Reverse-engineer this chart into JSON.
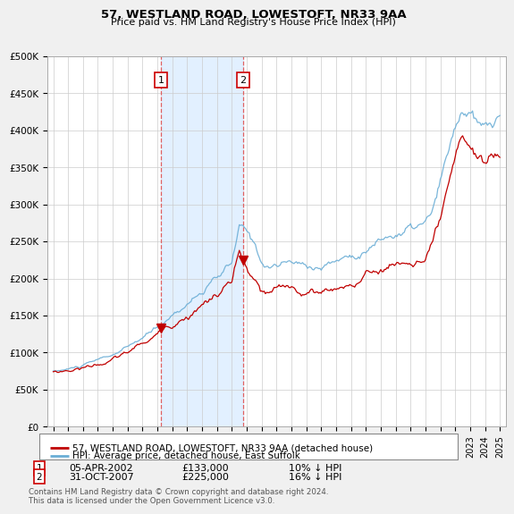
{
  "title1": "57, WESTLAND ROAD, LOWESTOFT, NR33 9AA",
  "title2": "Price paid vs. HM Land Registry's House Price Index (HPI)",
  "legend_line1": "57, WESTLAND ROAD, LOWESTOFT, NR33 9AA (detached house)",
  "legend_line2": "HPI: Average price, detached house, East Suffolk",
  "footnote": "Contains HM Land Registry data © Crown copyright and database right 2024.\nThis data is licensed under the Open Government Licence v3.0.",
  "sale1_label": "1",
  "sale1_date": "05-APR-2002",
  "sale1_price": "£133,000",
  "sale1_hpi": "10% ↓ HPI",
  "sale2_label": "2",
  "sale2_date": "31-OCT-2007",
  "sale2_price": "£225,000",
  "sale2_hpi": "16% ↓ HPI",
  "hpi_color": "#6baed6",
  "price_color": "#c00000",
  "vline_color": "#e06060",
  "shade_color": "#ddeeff",
  "ylim_min": 0,
  "ylim_max": 500000,
  "yticks": [
    0,
    50000,
    100000,
    150000,
    200000,
    250000,
    300000,
    350000,
    400000,
    450000,
    500000
  ],
  "ytick_labels": [
    "£0",
    "£50K",
    "£100K",
    "£150K",
    "£200K",
    "£250K",
    "£300K",
    "£350K",
    "£400K",
    "£450K",
    "£500K"
  ],
  "background_color": "#f0f0f0",
  "plot_bg_color": "#ffffff",
  "grid_color": "#cccccc"
}
